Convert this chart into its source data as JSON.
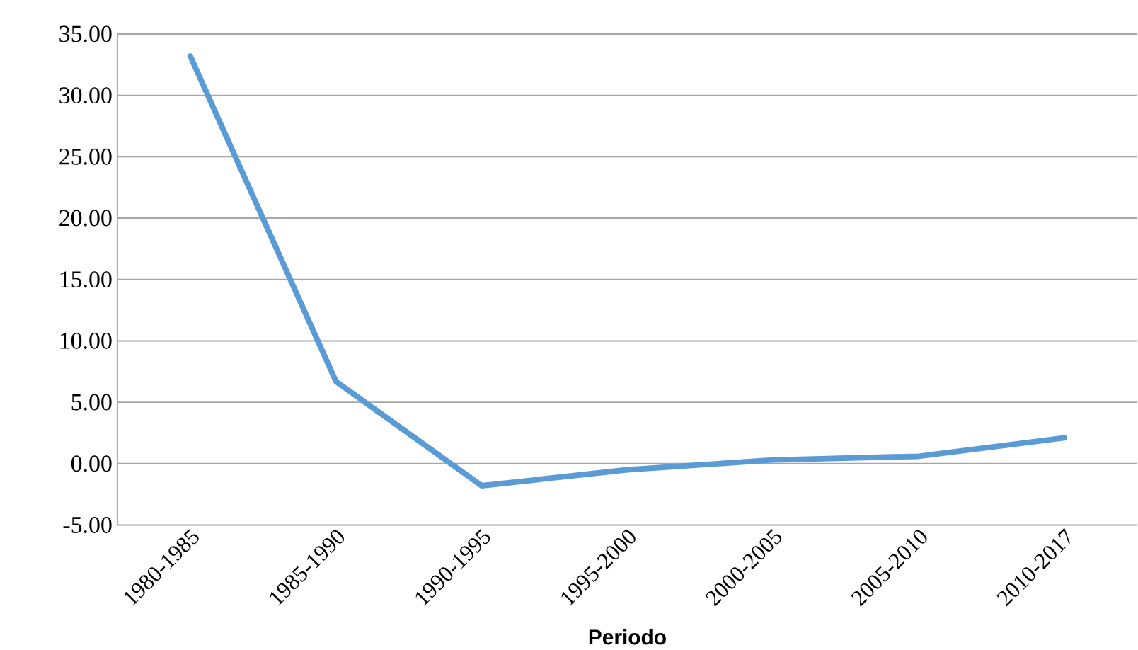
{
  "chart_data": {
    "type": "line",
    "xlabel": "Periodo",
    "categories": [
      "1980-1985",
      "1985-1990",
      "1990-1995",
      "1995-2000",
      "2000-2005",
      "2005-2010",
      "2010-2017"
    ],
    "series": [
      {
        "color": "#5b9bd5",
        "values": [
          33.2,
          6.7,
          -1.8,
          -0.5,
          0.3,
          0.6,
          2.1
        ]
      }
    ],
    "ylim": [
      -5,
      35
    ],
    "yticks": [
      {
        "value": -5,
        "label": "-5.00"
      },
      {
        "value": 0,
        "label": "0.00"
      },
      {
        "value": 5,
        "label": "5.00"
      },
      {
        "value": 10,
        "label": "10.00"
      },
      {
        "value": 15,
        "label": "15.00"
      },
      {
        "value": 20,
        "label": "20.00"
      },
      {
        "value": 25,
        "label": "25.00"
      },
      {
        "value": 30,
        "label": "30.00"
      },
      {
        "value": 35,
        "label": "35.00"
      }
    ],
    "grid": "y",
    "legend": false,
    "marker": "none",
    "line_style": "solid"
  }
}
